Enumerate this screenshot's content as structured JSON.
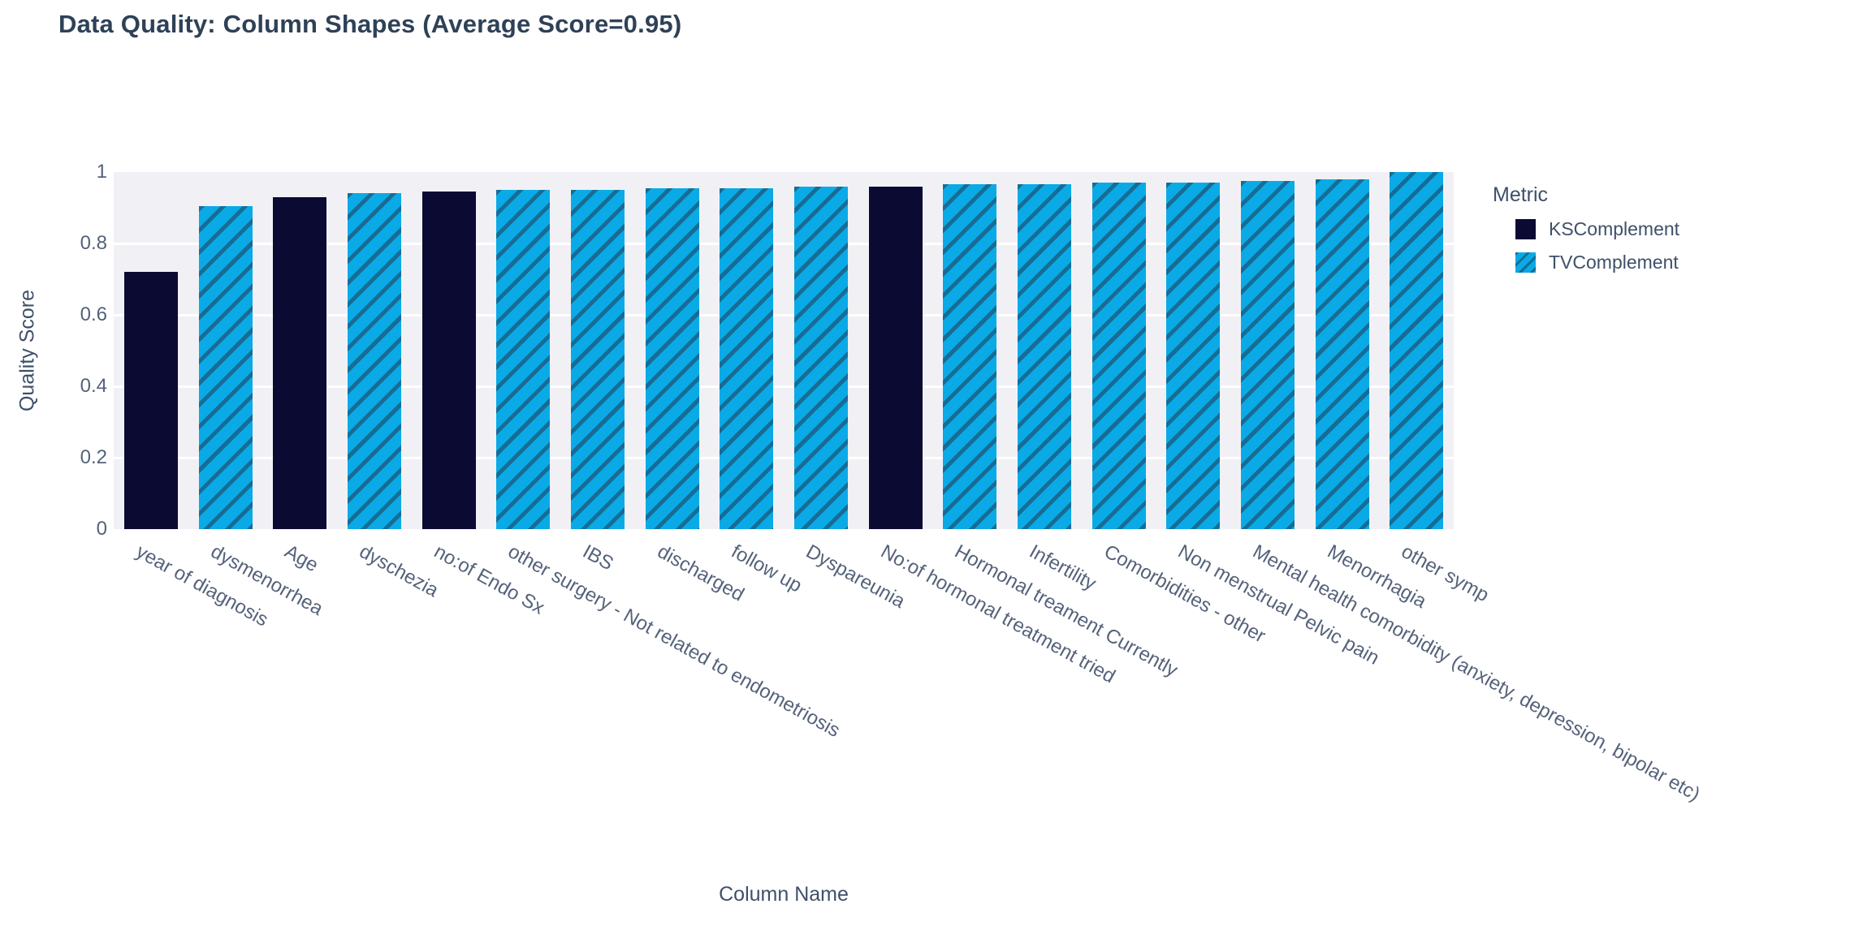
{
  "title": "Data Quality: Column Shapes (Average Score=0.95)",
  "chart_data": {
    "type": "bar",
    "title": "Data Quality: Column Shapes (Average Score=0.95)",
    "xlabel": "Column Name",
    "ylabel": "Quality Score",
    "ylim": [
      0,
      1
    ],
    "ytick_labels": [
      "0",
      "0.2",
      "0.4",
      "0.6",
      "0.8",
      "1"
    ],
    "yticks": [
      0,
      0.2,
      0.4,
      0.6,
      0.8,
      1
    ],
    "grid": true,
    "legend_title": "Metric",
    "legend_position": "right",
    "series": [
      {
        "name": "KSComplement",
        "color": "#0a0a33",
        "pattern": "solid"
      },
      {
        "name": "TVComplement",
        "color": "#0aaae6",
        "pattern": "diagonal-hatch"
      }
    ],
    "categories": [
      "year of diagnosis",
      "dysmenorrhea",
      "Age",
      "dyschezia",
      "no:of Endo Sx",
      "other surgery - Not related to endometriosis",
      "IBS",
      "discharged",
      "follow up",
      "Dyspareunia",
      "No:of hormonal treatment tried",
      "Hormonal treament Currently",
      "Infertility",
      "Comorbidities - other",
      "Non menstrual Pelvic pain",
      "Mental health comorbidity (anxiety, depression, bipolar etc)",
      "Menorrhagia",
      "other symp"
    ],
    "points": [
      {
        "column": "year of diagnosis",
        "metric": "KSComplement",
        "value": 0.72
      },
      {
        "column": "dysmenorrhea",
        "metric": "TVComplement",
        "value": 0.905
      },
      {
        "column": "Age",
        "metric": "KSComplement",
        "value": 0.93
      },
      {
        "column": "dyschezia",
        "metric": "TVComplement",
        "value": 0.94
      },
      {
        "column": "no:of Endo Sx",
        "metric": "KSComplement",
        "value": 0.945
      },
      {
        "column": "other surgery - Not related to endometriosis",
        "metric": "TVComplement",
        "value": 0.95
      },
      {
        "column": "IBS",
        "metric": "TVComplement",
        "value": 0.95
      },
      {
        "column": "discharged",
        "metric": "TVComplement",
        "value": 0.955
      },
      {
        "column": "follow up",
        "metric": "TVComplement",
        "value": 0.955
      },
      {
        "column": "Dyspareunia",
        "metric": "TVComplement",
        "value": 0.96
      },
      {
        "column": "No:of hormonal treatment tried",
        "metric": "KSComplement",
        "value": 0.96
      },
      {
        "column": "Hormonal treament Currently",
        "metric": "TVComplement",
        "value": 0.965
      },
      {
        "column": "Infertility",
        "metric": "TVComplement",
        "value": 0.965
      },
      {
        "column": "Comorbidities - other",
        "metric": "TVComplement",
        "value": 0.97
      },
      {
        "column": "Non menstrual Pelvic pain",
        "metric": "TVComplement",
        "value": 0.97
      },
      {
        "column": "Mental health comorbidity (anxiety, depression, bipolar etc)",
        "metric": "TVComplement",
        "value": 0.975
      },
      {
        "column": "Menorrhagia",
        "metric": "TVComplement",
        "value": 0.98
      },
      {
        "column": "other symp",
        "metric": "TVComplement",
        "value": 1.0
      }
    ]
  },
  "colors": {
    "ks_complement": "#0a0a33",
    "tv_complement": "#0aaae6",
    "hatch_stripe": "rgba(30,75,105,0.65)",
    "plot_background": "#f1f1f5",
    "gridline": "#ffffff",
    "title_text": "#2e4157",
    "axis_text": "#3f5069",
    "tick_text": "#55627a"
  }
}
